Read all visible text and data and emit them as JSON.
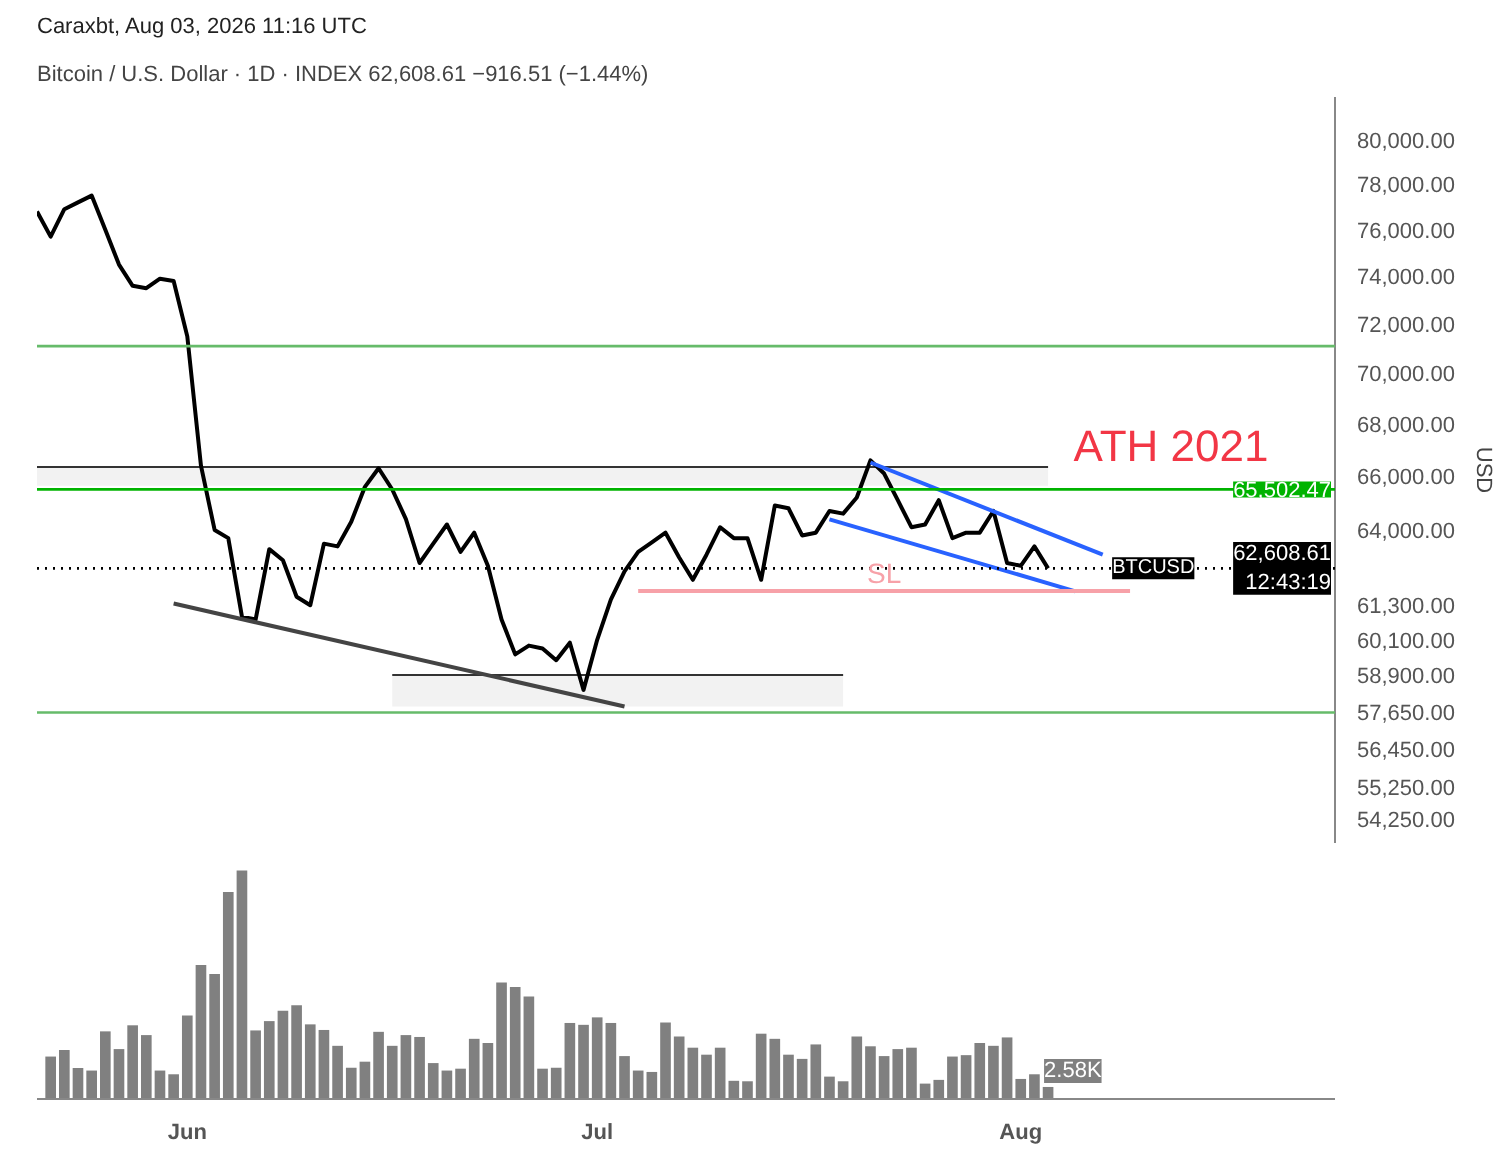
{
  "chart_data": [
    {
      "type": "line",
      "title": "Bitcoin / U.S. Dollar · 1D · INDEX  62,608.61  −916.51 (−1.44%)",
      "ylabel": "USD",
      "log": true,
      "tick_labels": "y",
      "xlim": [
        "2026-05-21",
        "2026-08-24"
      ],
      "ylim": [
        53500,
        82000
      ],
      "yticks": [
        {
          "value": 80000,
          "label": "80,000.00"
        },
        {
          "value": 78000,
          "label": "78,000.00"
        },
        {
          "value": 76000,
          "label": "76,000.00"
        },
        {
          "value": 74000,
          "label": "74,000.00"
        },
        {
          "value": 72000,
          "label": "72,000.00"
        },
        {
          "value": 70000,
          "label": "70,000.00"
        },
        {
          "value": 68000,
          "label": "68,000.00"
        },
        {
          "value": 66000,
          "label": "66,000.00"
        },
        {
          "value": 64000,
          "label": "64,000.00"
        },
        {
          "value": 61300,
          "label": "61,300.00"
        },
        {
          "value": 60100,
          "label": "60,100.00"
        },
        {
          "value": 58900,
          "label": "58,900.00"
        },
        {
          "value": 57650,
          "label": "57,650.00"
        },
        {
          "value": 56450,
          "label": "56,450.00"
        },
        {
          "value": 55250,
          "label": "55,250.00"
        },
        {
          "value": 54250,
          "label": "54,250.00"
        }
      ],
      "series": [
        {
          "color": "#333333",
          "x": [
            "2026-05-21",
            "2026-08-03"
          ],
          "values": [
            66350,
            66350
          ],
          "upper": [
            66350,
            66350
          ],
          "lower": [
            65640,
            65640
          ]
        },
        {
          "color": "#333333",
          "x": [
            "2026-06-16",
            "2026-07-19"
          ],
          "values": [
            58900,
            58900
          ],
          "upper": [
            58900,
            58900
          ],
          "lower": [
            57850,
            57850
          ]
        },
        {
          "color": "#000000",
          "x": [
            "2026-05-21",
            "2026-05-22",
            "2026-05-23",
            "2026-05-24",
            "2026-05-25",
            "2026-05-26",
            "2026-05-27",
            "2026-05-28",
            "2026-05-29",
            "2026-05-30",
            "2026-05-31",
            "2026-06-01",
            "2026-06-02",
            "2026-06-03",
            "2026-06-04",
            "2026-06-05",
            "2026-06-06",
            "2026-06-07",
            "2026-06-08",
            "2026-06-09",
            "2026-06-10",
            "2026-06-11",
            "2026-06-12",
            "2026-06-13",
            "2026-06-14",
            "2026-06-15",
            "2026-06-16",
            "2026-06-17",
            "2026-06-18",
            "2026-06-19",
            "2026-06-20",
            "2026-06-21",
            "2026-06-22",
            "2026-06-23",
            "2026-06-24",
            "2026-06-25",
            "2026-06-26",
            "2026-06-27",
            "2026-06-28",
            "2026-06-29",
            "2026-06-30",
            "2026-07-01",
            "2026-07-02",
            "2026-07-03",
            "2026-07-04",
            "2026-07-05",
            "2026-07-06",
            "2026-07-07",
            "2026-07-08",
            "2026-07-09",
            "2026-07-10",
            "2026-07-11",
            "2026-07-12",
            "2026-07-13",
            "2026-07-14",
            "2026-07-15",
            "2026-07-16",
            "2026-07-17",
            "2026-07-18",
            "2026-07-19",
            "2026-07-20",
            "2026-07-21",
            "2026-07-22",
            "2026-07-23",
            "2026-07-24",
            "2026-07-25",
            "2026-07-26",
            "2026-07-27",
            "2026-07-28",
            "2026-07-29",
            "2026-07-30",
            "2026-07-31",
            "2026-08-01",
            "2026-08-02",
            "2026-08-03"
          ],
          "values": [
            76800,
            75700,
            76900,
            77200,
            77500,
            76000,
            74500,
            73600,
            73500,
            73900,
            73800,
            71500,
            66400,
            64000,
            63700,
            60900,
            60800,
            63300,
            62900,
            61600,
            61300,
            63500,
            63400,
            64300,
            65600,
            66300,
            65500,
            64400,
            62800,
            63500,
            64200,
            63200,
            63900,
            62700,
            60800,
            59600,
            59900,
            59800,
            59400,
            60000,
            58400,
            60100,
            61500,
            62500,
            63200,
            63550,
            63900,
            63000,
            62200,
            63100,
            64100,
            63700,
            63700,
            62200,
            64900,
            64800,
            63800,
            63900,
            64700,
            64600,
            65200,
            66600,
            66100,
            65100,
            64100,
            64200,
            65100,
            63700,
            63900,
            63900,
            64700,
            62800,
            62700,
            63400,
            62608.61
          ]
        },
        {
          "color": "#444444",
          "x": [
            "2026-05-31",
            "2026-07-03"
          ],
          "values": [
            61360,
            57850
          ]
        },
        {
          "color": "#2962ff",
          "x": [
            "2026-07-21",
            "2026-08-07"
          ],
          "values": [
            66520,
            63100
          ]
        },
        {
          "color": "#2962ff",
          "x": [
            "2026-07-18",
            "2026-08-05"
          ],
          "values": [
            64390,
            61790
          ]
        },
        {
          "name": "SL",
          "color": "#f7a1a8",
          "x": [
            "2026-07-04",
            "2026-08-09"
          ],
          "values": [
            61800,
            61800
          ]
        }
      ],
      "ref_lines": [
        {
          "axis": "y",
          "value": 71100,
          "color": "#66bb6a"
        },
        {
          "axis": "y",
          "value": 65502.47,
          "label": "65,502.47",
          "color": "#00b300"
        },
        {
          "axis": "y",
          "value": 62608.61,
          "label": "62,608.61\n12:43:19",
          "color": "#000000",
          "line_style": "dotted"
        },
        {
          "axis": "y",
          "value": 57650,
          "color": "#66bb6a"
        }
      ],
      "annotations": [
        "Caraxbt, Aug 03, 2026 11:16 UTC",
        {
          "text": "ATH 2021",
          "x": "2026-08-12",
          "y": 65502.47
        },
        {
          "text": "BTCUSD",
          "x": "2026-08-14",
          "y": 62608.61
        }
      ]
    },
    {
      "type": "bar",
      "tick_labels": "x",
      "color": "#808080",
      "xlim": [
        "2026-05-21",
        "2026-08-24"
      ],
      "xticks": [
        {
          "value": "2026-06-01",
          "label": "Jun"
        },
        {
          "value": "2026-07-01",
          "label": "Jul"
        },
        {
          "value": "2026-08-01",
          "label": "Aug"
        }
      ],
      "x": [
        "2026-05-22",
        "2026-05-23",
        "2026-05-24",
        "2026-05-25",
        "2026-05-26",
        "2026-05-27",
        "2026-05-28",
        "2026-05-29",
        "2026-05-30",
        "2026-05-31",
        "2026-06-01",
        "2026-06-02",
        "2026-06-03",
        "2026-06-04",
        "2026-06-05",
        "2026-06-06",
        "2026-06-07",
        "2026-06-08",
        "2026-06-09",
        "2026-06-10",
        "2026-06-11",
        "2026-06-12",
        "2026-06-13",
        "2026-06-14",
        "2026-06-15",
        "2026-06-16",
        "2026-06-17",
        "2026-06-18",
        "2026-06-19",
        "2026-06-20",
        "2026-06-21",
        "2026-06-22",
        "2026-06-23",
        "2026-06-24",
        "2026-06-25",
        "2026-06-26",
        "2026-06-27",
        "2026-06-28",
        "2026-06-29",
        "2026-06-30",
        "2026-07-01",
        "2026-07-02",
        "2026-07-03",
        "2026-07-04",
        "2026-07-05",
        "2026-07-06",
        "2026-07-07",
        "2026-07-08",
        "2026-07-09",
        "2026-07-10",
        "2026-07-11",
        "2026-07-12",
        "2026-07-13",
        "2026-07-14",
        "2026-07-15",
        "2026-07-16",
        "2026-07-17",
        "2026-07-18",
        "2026-07-19",
        "2026-07-20",
        "2026-07-21",
        "2026-07-22",
        "2026-07-23",
        "2026-07-24",
        "2026-07-25",
        "2026-07-26",
        "2026-07-27",
        "2026-07-28",
        "2026-07-29",
        "2026-07-30",
        "2026-07-31",
        "2026-08-01",
        "2026-08-02",
        "2026-08-03"
      ],
      "values": [
        9100,
        10500,
        6650,
        6100,
        14500,
        10700,
        15800,
        13700,
        6100,
        5300,
        17900,
        28700,
        26800,
        44400,
        49000,
        14700,
        16700,
        18900,
        20100,
        16000,
        14800,
        11400,
        6700,
        8000,
        14400,
        11400,
        13700,
        13300,
        7700,
        6100,
        6500,
        12900,
        12000,
        25000,
        24000,
        22000,
        6500,
        6700,
        16300,
        15900,
        17500,
        16300,
        9200,
        6100,
        5800,
        16400,
        13400,
        11000,
        9500,
        11000,
        3900,
        3800,
        14000,
        12900,
        9500,
        8600,
        11700,
        4800,
        3800,
        13400,
        11300,
        9200,
        10700,
        11000,
        3300,
        4100,
        9100,
        9400,
        12000,
        11400,
        13200,
        4300,
        5300,
        2580
      ],
      "value_labels": [
        null,
        null,
        null,
        null,
        null,
        null,
        null,
        null,
        null,
        null,
        null,
        null,
        null,
        null,
        null,
        null,
        null,
        null,
        null,
        null,
        null,
        null,
        null,
        null,
        null,
        null,
        null,
        null,
        null,
        null,
        null,
        null,
        null,
        null,
        null,
        null,
        null,
        null,
        null,
        null,
        null,
        null,
        null,
        null,
        null,
        null,
        null,
        null,
        null,
        null,
        null,
        null,
        null,
        null,
        null,
        null,
        null,
        null,
        null,
        null,
        null,
        null,
        null,
        null,
        null,
        null,
        null,
        null,
        null,
        null,
        null,
        null,
        null,
        "2.58K"
      ]
    }
  ]
}
